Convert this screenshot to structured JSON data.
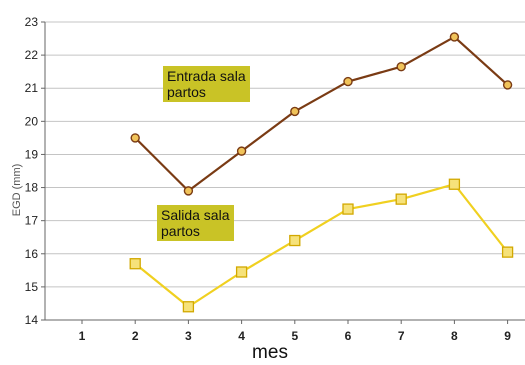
{
  "chart_data": {
    "type": "line",
    "x": [
      1,
      2,
      3,
      4,
      5,
      6,
      7,
      8,
      9
    ],
    "series": [
      {
        "values": [
          null,
          19.5,
          17.9,
          19.1,
          20.3,
          21.2,
          21.65,
          22.55,
          21.1
        ],
        "color": "#7a3b14",
        "marker": "circle"
      },
      {
        "values": [
          null,
          15.7,
          14.4,
          15.45,
          16.4,
          17.35,
          17.65,
          18.1,
          16.05
        ],
        "color": "#f0d020",
        "marker": "square"
      }
    ],
    "xticks": [
      "1",
      "2",
      "3",
      "4",
      "5",
      "6",
      "7",
      "8",
      "9"
    ],
    "yticks": [
      "14",
      "15",
      "16",
      "17",
      "18",
      "19",
      "20",
      "21",
      "22",
      "23"
    ],
    "xlabel": "mes",
    "ylabel": "EGD (mm)",
    "ylim": [
      14,
      23
    ],
    "grid": true,
    "annotations": [
      {
        "line1": "Entrada sala",
        "line2": "partos"
      },
      {
        "line1": "Salida sala",
        "line2": "partos"
      }
    ]
  }
}
